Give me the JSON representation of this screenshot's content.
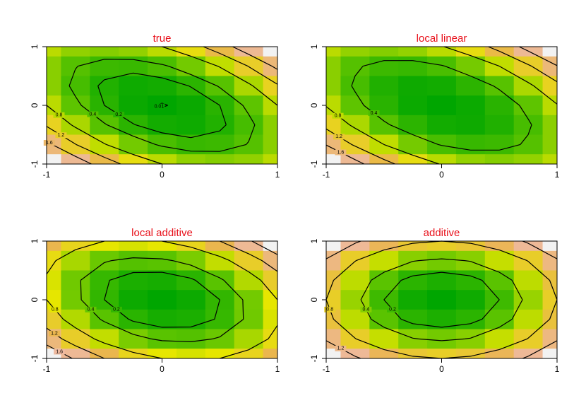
{
  "chart_data": [
    {
      "type": "contour",
      "title": "true",
      "x": [
        -1,
        -0.75,
        -0.5,
        -0.25,
        0,
        0.25,
        0.5,
        0.75,
        1
      ],
      "y": [
        1,
        0.667,
        0.333,
        0,
        -0.333,
        -0.667,
        -1
      ],
      "z": [
        [
          0.8,
          0.65,
          0.6,
          0.65,
          0.8,
          1.05,
          1.4,
          1.85,
          2.4
        ],
        [
          0.62,
          0.41,
          0.29,
          0.27,
          0.36,
          0.54,
          0.82,
          1.21,
          1.69
        ],
        [
          0.62,
          0.34,
          0.16,
          0.07,
          0.09,
          0.21,
          0.42,
          0.74,
          1.16
        ],
        [
          0.8,
          0.45,
          0.2,
          0.05,
          0,
          0.05,
          0.2,
          0.45,
          0.8
        ],
        [
          1.16,
          0.74,
          0.42,
          0.21,
          0.09,
          0.07,
          0.16,
          0.34,
          0.62
        ],
        [
          1.69,
          1.21,
          0.82,
          0.54,
          0.36,
          0.27,
          0.29,
          0.41,
          0.62
        ],
        [
          2.4,
          1.85,
          1.4,
          1.05,
          0.8,
          0.65,
          0.6,
          0.65,
          0.8
        ]
      ],
      "levels": [
        0.01,
        0.2,
        0.4,
        0.8,
        1.2,
        1.6
      ],
      "colors": [
        "#00a600",
        "#63c600",
        "#e6e600",
        "#eab64e",
        "#eeb99f",
        "#f2f2f2"
      ],
      "xlim": [
        -1,
        1
      ],
      "ylim": [
        -1,
        1
      ],
      "xticks": [
        -1,
        0,
        1
      ],
      "yticks": [
        -1,
        0,
        1
      ]
    },
    {
      "type": "contour",
      "title": "local linear",
      "x": [
        -1,
        -0.75,
        -0.5,
        -0.25,
        0,
        0.25,
        0.5,
        0.75,
        1
      ],
      "y": [
        1,
        0.667,
        0.333,
        0,
        -0.333,
        -0.667,
        -1
      ],
      "z": [
        [
          0.78,
          0.65,
          0.6,
          0.65,
          0.78,
          1.01,
          1.32,
          1.73,
          2.22
        ],
        [
          0.62,
          0.43,
          0.32,
          0.3,
          0.38,
          0.55,
          0.8,
          1.15,
          1.58
        ],
        [
          0.62,
          0.37,
          0.2,
          0.12,
          0.14,
          0.25,
          0.44,
          0.73,
          1.1
        ],
        [
          0.78,
          0.47,
          0.24,
          0.11,
          0.06,
          0.11,
          0.24,
          0.47,
          0.78
        ],
        [
          1.1,
          0.73,
          0.44,
          0.25,
          0.14,
          0.12,
          0.2,
          0.37,
          0.62
        ],
        [
          1.58,
          1.15,
          0.8,
          0.55,
          0.38,
          0.3,
          0.32,
          0.43,
          0.62
        ],
        [
          2.22,
          1.73,
          1.32,
          1.01,
          0.78,
          0.65,
          0.6,
          0.65,
          0.78
        ]
      ],
      "levels": [
        0.4,
        0.8,
        1.2,
        1.6
      ],
      "colors": [
        "#00a600",
        "#63c600",
        "#e6e600",
        "#eab64e",
        "#eeb99f",
        "#f2f2f2"
      ],
      "xlim": [
        -1,
        1
      ],
      "ylim": [
        -1,
        1
      ],
      "xticks": [
        -1,
        0,
        1
      ],
      "yticks": [
        -1,
        0,
        1
      ]
    },
    {
      "type": "contour",
      "title": "local additive",
      "x": [
        -1,
        -0.75,
        -0.5,
        -0.25,
        0,
        0.25,
        0.5,
        0.75,
        1
      ],
      "y": [
        1,
        0.667,
        0.333,
        0,
        -0.333,
        -0.667,
        -1
      ],
      "z": [
        [
          1.2,
          0.95,
          0.8,
          0.75,
          0.8,
          0.95,
          1.2,
          1.55,
          2.0
        ],
        [
          0.89,
          0.61,
          0.42,
          0.34,
          0.36,
          0.47,
          0.69,
          1.01,
          1.42
        ],
        [
          0.76,
          0.44,
          0.22,
          0.11,
          0.09,
          0.17,
          0.36,
          0.64,
          1.02
        ],
        [
          0.8,
          0.45,
          0.2,
          0.05,
          0,
          0.05,
          0.2,
          0.45,
          0.8
        ],
        [
          1.02,
          0.64,
          0.36,
          0.17,
          0.09,
          0.11,
          0.22,
          0.44,
          0.76
        ],
        [
          1.42,
          1.01,
          0.69,
          0.47,
          0.36,
          0.34,
          0.42,
          0.61,
          0.89
        ],
        [
          2.0,
          1.55,
          1.2,
          0.95,
          0.8,
          0.75,
          0.8,
          0.95,
          1.2
        ]
      ],
      "levels": [
        0.2,
        0.4,
        0.8,
        1.2,
        1.6
      ],
      "colors": [
        "#00a600",
        "#63c600",
        "#e6e600",
        "#eab64e",
        "#eeb99f",
        "#f2f2f2"
      ],
      "xlim": [
        -1,
        1
      ],
      "ylim": [
        -1,
        1
      ],
      "xticks": [
        -1,
        0,
        1
      ],
      "yticks": [
        -1,
        0,
        1
      ]
    },
    {
      "type": "contour",
      "title": "additive",
      "x": [
        -1,
        -0.75,
        -0.5,
        -0.25,
        0,
        0.25,
        0.5,
        0.75,
        1
      ],
      "y": [
        1,
        0.667,
        0.333,
        0,
        -0.333,
        -0.667,
        -1
      ],
      "z": [
        [
          1.6,
          1.25,
          1.0,
          0.85,
          0.8,
          0.85,
          1.0,
          1.25,
          1.6
        ],
        [
          1.16,
          0.81,
          0.56,
          0.41,
          0.36,
          0.41,
          0.56,
          0.81,
          1.16
        ],
        [
          0.89,
          0.54,
          0.29,
          0.14,
          0.09,
          0.14,
          0.29,
          0.54,
          0.89
        ],
        [
          0.8,
          0.45,
          0.2,
          0.05,
          0,
          0.05,
          0.2,
          0.45,
          0.8
        ],
        [
          0.89,
          0.54,
          0.29,
          0.14,
          0.09,
          0.14,
          0.29,
          0.54,
          0.89
        ],
        [
          1.16,
          0.81,
          0.56,
          0.41,
          0.36,
          0.41,
          0.56,
          0.81,
          1.16
        ],
        [
          1.6,
          1.25,
          1.0,
          0.85,
          0.8,
          0.85,
          1.0,
          1.25,
          1.6
        ]
      ],
      "levels": [
        0.2,
        0.4,
        0.8,
        1.2
      ],
      "colors": [
        "#00a600",
        "#63c600",
        "#e6e600",
        "#eab64e",
        "#eeb99f",
        "#f2f2f2"
      ],
      "xlim": [
        -1,
        1
      ],
      "ylim": [
        -1,
        1
      ],
      "xticks": [
        -1,
        0,
        1
      ],
      "yticks": [
        -1,
        0,
        1
      ]
    }
  ]
}
